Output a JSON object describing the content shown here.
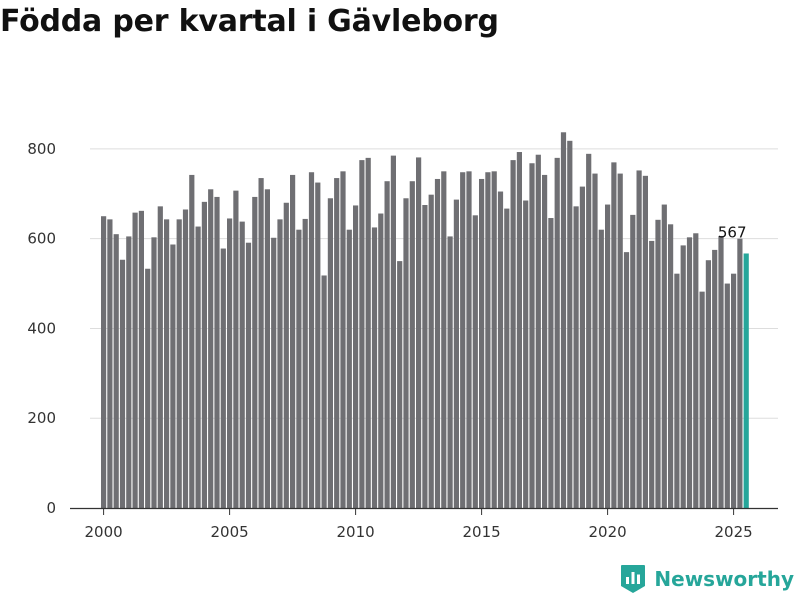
{
  "chart_data": {
    "type": "bar",
    "title": "Födda per kvartal i Gävleborg",
    "xlabel": "",
    "ylabel": "",
    "ylim": [
      0,
      900
    ],
    "yticks": [
      0,
      200,
      400,
      600,
      800
    ],
    "xticks": [
      2000,
      2005,
      2010,
      2015,
      2020,
      2025
    ],
    "grid": true,
    "colors": {
      "bar": "#6f6f73",
      "highlight": "#26a69a",
      "grid": "#dddddd",
      "axis": "#333333"
    },
    "categories": [
      "2000 K1",
      "2000 K2",
      "2000 K3",
      "2000 K4",
      "2001 K1",
      "2001 K2",
      "2001 K3",
      "2001 K4",
      "2002 K1",
      "2002 K2",
      "2002 K3",
      "2002 K4",
      "2003 K1",
      "2003 K2",
      "2003 K3",
      "2003 K4",
      "2004 K1",
      "2004 K2",
      "2004 K3",
      "2004 K4",
      "2005 K1",
      "2005 K2",
      "2005 K3",
      "2005 K4",
      "2006 K1",
      "2006 K2",
      "2006 K3",
      "2006 K4",
      "2007 K1",
      "2007 K2",
      "2007 K3",
      "2007 K4",
      "2008 K1",
      "2008 K2",
      "2008 K3",
      "2008 K4",
      "2009 K1",
      "2009 K2",
      "2009 K3",
      "2009 K4",
      "2010 K1",
      "2010 K2",
      "2010 K3",
      "2010 K4",
      "2011 K1",
      "2011 K2",
      "2011 K3",
      "2011 K4",
      "2012 K1",
      "2012 K2",
      "2012 K3",
      "2012 K4",
      "2013 K1",
      "2013 K2",
      "2013 K3",
      "2013 K4",
      "2014 K1",
      "2014 K2",
      "2014 K3",
      "2014 K4",
      "2015 K1",
      "2015 K2",
      "2015 K3",
      "2015 K4",
      "2016 K1",
      "2016 K2",
      "2016 K3",
      "2016 K4",
      "2017 K1",
      "2017 K2",
      "2017 K3",
      "2017 K4",
      "2018 K1",
      "2018 K2",
      "2018 K3",
      "2018 K4",
      "2019 K1",
      "2019 K2",
      "2019 K3",
      "2019 K4",
      "2020 K1",
      "2020 K2",
      "2020 K3",
      "2020 K4",
      "2021 K1",
      "2021 K2",
      "2021 K3",
      "2021 K4",
      "2022 K1",
      "2022 K2",
      "2022 K3",
      "2022 K4",
      "2023 K1",
      "2023 K2",
      "2023 K3",
      "2023 K4",
      "2024 K1",
      "2024 K2",
      "2024 K3",
      "2024 K4",
      "2025 K1",
      "2025 K2",
      "2025 K3"
    ],
    "values": [
      650,
      643,
      610,
      553,
      605,
      658,
      662,
      533,
      603,
      672,
      643,
      587,
      643,
      665,
      742,
      627,
      682,
      710,
      693,
      578,
      645,
      707,
      638,
      591,
      693,
      735,
      710,
      602,
      643,
      680,
      742,
      620,
      644,
      748,
      725,
      518,
      690,
      735,
      750,
      620,
      674,
      775,
      780,
      625,
      656,
      728,
      785,
      550,
      690,
      728,
      781,
      675,
      698,
      733,
      750,
      605,
      687,
      748,
      750,
      652,
      733,
      748,
      750,
      705,
      667,
      775,
      793,
      685,
      768,
      787,
      742,
      646,
      780,
      837,
      818,
      672,
      716,
      789,
      745,
      620,
      676,
      770,
      745,
      570,
      653,
      752,
      740,
      595,
      642,
      676,
      632,
      522,
      585,
      603,
      612,
      482,
      552,
      575,
      606,
      500,
      522,
      600,
      567
    ],
    "highlight_index": 102,
    "annotations": [
      {
        "index": 102,
        "text": "567"
      }
    ]
  },
  "branding": {
    "name": "Newsworthy",
    "logo_icon": "newsworthy-logo-icon"
  }
}
